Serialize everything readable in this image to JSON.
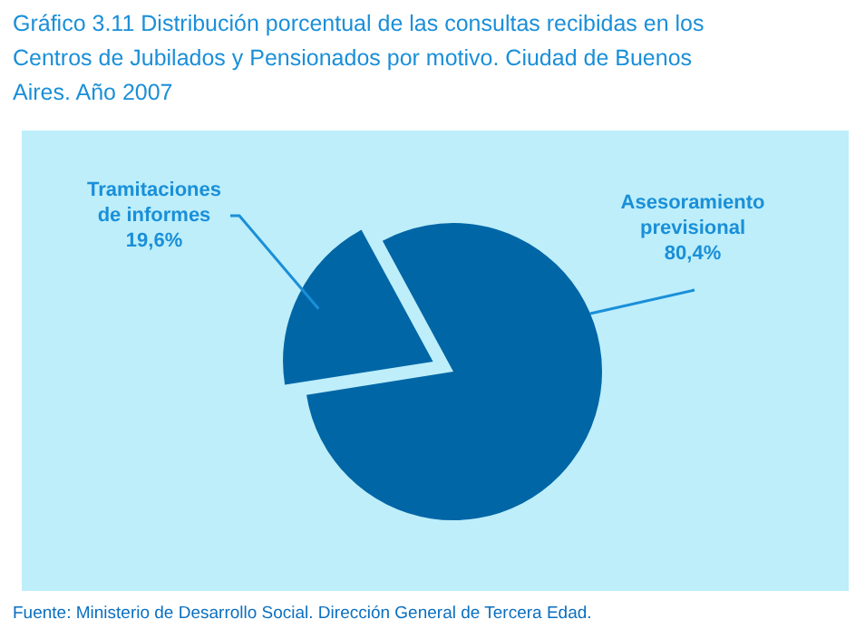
{
  "chart_data": {
    "type": "pie",
    "title": "Gráfico 3.11 Distribución porcentual de las consultas recibidas en los Centros de Jubilados y Pensionados por motivo. Ciudad de Buenos Aires. Año 2007",
    "categories": [
      "Tramitaciones de informes",
      "Asesoramiento previsional"
    ],
    "values": [
      19.6,
      80.4
    ],
    "colors": [
      "#0066a6",
      "#0066a6"
    ],
    "value_labels": [
      "19,6%",
      "80,4%"
    ],
    "legend": false,
    "annotations": [
      "Fuente: Ministerio de Desarrollo Social. Dirección General de Tercera Edad."
    ]
  }
}
